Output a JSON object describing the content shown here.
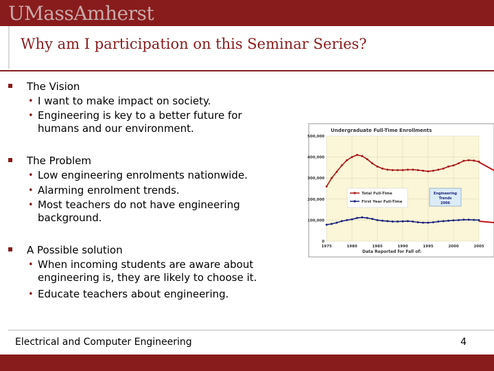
{
  "header": {
    "logo_text": "UMassAmherst",
    "title": "Why am I participation on this Seminar Series?"
  },
  "sections": [
    {
      "label": "The Vision",
      "items": [
        "I want to make impact on society.",
        "Engineering is key to a better future for humans and our environment."
      ]
    },
    {
      "label": "The Problem",
      "items": [
        "Low engineering enrolments nationwide.",
        "Alarming enrolment trends.",
        "Most teachers do not have engineering background."
      ]
    },
    {
      "label": "A Possible solution",
      "items": [
        "When incoming students are aware about engineering is, they are likely to choose it.",
        "Educate teachers about engineering."
      ]
    }
  ],
  "footer": {
    "text": "Electrical and Computer Engineering",
    "page": "4"
  },
  "colors": {
    "brand": "#881c1c",
    "full_time": "#a81818",
    "first_year": "#1a237e",
    "chart_bg": "#fbf6d8"
  },
  "chart_data": {
    "type": "line",
    "title": "Undergraduate Full-Time Enrollments",
    "xlabel": "Data Reported for Fall of:",
    "ylabel": "",
    "xlim": [
      1975,
      2005
    ],
    "ylim": [
      0,
      500000
    ],
    "x_ticks": [
      "1975",
      "1980",
      "1985",
      "1990",
      "1995",
      "2000",
      "2005"
    ],
    "y_ticks": [
      "0",
      "100,000",
      "200,000",
      "300,000",
      "400,000",
      "500,000"
    ],
    "annotation": "Engineering Trends 2006",
    "series": [
      {
        "name": "Total Full-Time",
        "x": [
          1975,
          1976,
          1977,
          1978,
          1979,
          1980,
          1981,
          1982,
          1983,
          1984,
          1985,
          1986,
          1987,
          1988,
          1989,
          1990,
          1991,
          1992,
          1993,
          1994,
          1995,
          1996,
          1997,
          1998,
          1999,
          2000,
          2001,
          2002,
          2003,
          2004,
          2005
        ],
        "y": [
          260000,
          300000,
          330000,
          360000,
          385000,
          400000,
          410000,
          405000,
          390000,
          370000,
          355000,
          345000,
          340000,
          338000,
          338000,
          338000,
          340000,
          340000,
          338000,
          335000,
          332000,
          335000,
          340000,
          345000,
          355000,
          360000,
          370000,
          382000,
          385000,
          383000,
          378000
        ]
      },
      {
        "name": "First Year Full-Time",
        "x": [
          1975,
          1976,
          1977,
          1978,
          1979,
          1980,
          1981,
          1982,
          1983,
          1984,
          1985,
          1986,
          1987,
          1988,
          1989,
          1990,
          1991,
          1992,
          1993,
          1994,
          1995,
          1996,
          1997,
          1998,
          1999,
          2000,
          2001,
          2002,
          2003,
          2004,
          2005
        ],
        "y": [
          78000,
          82000,
          88000,
          95000,
          100000,
          104000,
          110000,
          113000,
          110000,
          106000,
          100000,
          97000,
          95000,
          93000,
          93000,
          94000,
          95000,
          93000,
          90000,
          88000,
          88000,
          90000,
          93000,
          95000,
          97000,
          99000,
          100000,
          102000,
          102000,
          101000,
          100000
        ]
      }
    ]
  }
}
